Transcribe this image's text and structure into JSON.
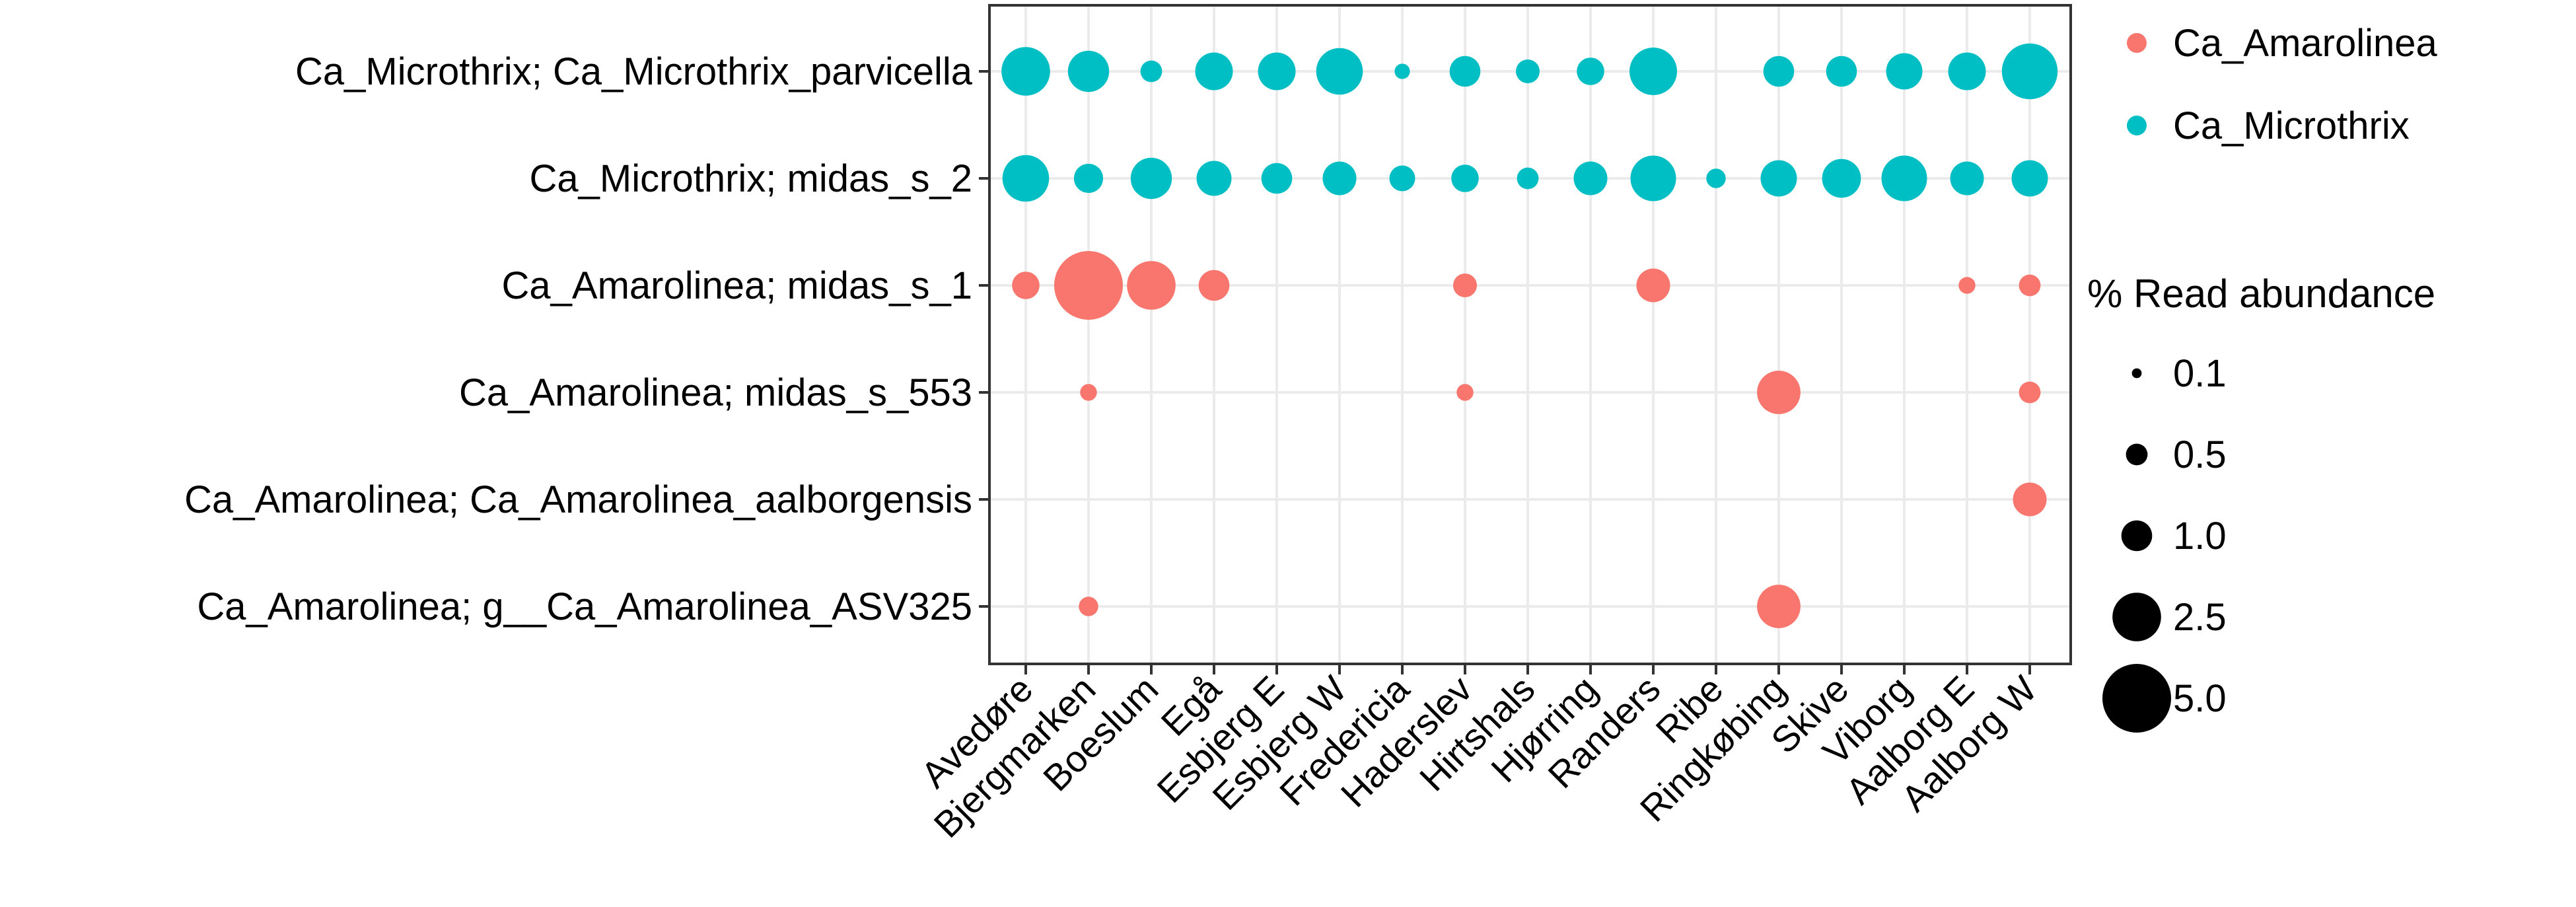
{
  "chart_data": {
    "type": "scatter",
    "subtype": "bubble",
    "title": "",
    "xlabel": "",
    "ylabel": "",
    "x_categories": [
      "Avedøre",
      "Bjergmarken",
      "Boeslum",
      "Egå",
      "Esbjerg E",
      "Esbjerg W",
      "Fredericia",
      "Haderslev",
      "Hirtshals",
      "Hjørring",
      "Randers",
      "Ribe",
      "Ringkøbing",
      "Skive",
      "Viborg",
      "Aalborg E",
      "Aalborg W"
    ],
    "y_categories": [
      "Ca_Microthrix; Ca_Microthrix_parvicella",
      "Ca_Microthrix; midas_s_2",
      "Ca_Amarolinea; midas_s_1",
      "Ca_Amarolinea; midas_s_553",
      "Ca_Amarolinea; Ca_Amarolinea_aalborgensis",
      "Ca_Amarolinea; g__Ca_Amarolinea_ASV325"
    ],
    "colors": {
      "Ca_Amarolinea": "#F8766D",
      "Ca_Microthrix": "#00BFC4"
    },
    "series": [
      {
        "name": "Ca_Microthrix",
        "row": "Ca_Microthrix; Ca_Microthrix_parvicella",
        "values": [
          2.5,
          1.8,
          0.5,
          1.5,
          1.5,
          2.3,
          0.25,
          1.0,
          0.6,
          0.8,
          2.4,
          null,
          1.0,
          1.0,
          1.4,
          1.5,
          3.3
        ]
      },
      {
        "name": "Ca_Microthrix",
        "row": "Ca_Microthrix; midas_s_2",
        "values": [
          2.3,
          0.9,
          1.8,
          1.3,
          1.0,
          1.2,
          0.7,
          0.8,
          0.5,
          1.2,
          2.2,
          0.4,
          1.4,
          1.6,
          2.2,
          1.2,
          1.4
        ]
      },
      {
        "name": "Ca_Amarolinea",
        "row": "Ca_Amarolinea; midas_s_1",
        "values": [
          0.8,
          5.0,
          2.5,
          1.0,
          null,
          null,
          null,
          0.6,
          null,
          null,
          1.2,
          null,
          null,
          null,
          null,
          0.3,
          0.5
        ]
      },
      {
        "name": "Ca_Amarolinea",
        "row": "Ca_Amarolinea; midas_s_553",
        "values": [
          null,
          0.3,
          null,
          null,
          null,
          null,
          null,
          0.3,
          null,
          null,
          null,
          null,
          2.0,
          null,
          null,
          null,
          0.5
        ]
      },
      {
        "name": "Ca_Amarolinea",
        "row": "Ca_Amarolinea; Ca_Amarolinea_aalborgensis",
        "values": [
          null,
          null,
          null,
          null,
          null,
          null,
          null,
          null,
          null,
          null,
          null,
          null,
          null,
          null,
          null,
          null,
          1.2
        ]
      },
      {
        "name": "Ca_Amarolinea",
        "row": "Ca_Amarolinea; g__Ca_Amarolinea_ASV325",
        "values": [
          null,
          0.4,
          null,
          null,
          null,
          null,
          null,
          null,
          null,
          null,
          null,
          null,
          2.0,
          null,
          null,
          null,
          null
        ]
      }
    ],
    "legend": {
      "color_entries": [
        "Ca_Amarolinea",
        "Ca_Microthrix"
      ],
      "size_title": "% Read abundance",
      "size_breaks": [
        0.1,
        0.5,
        1.0,
        2.5,
        5.0
      ],
      "size_labels": [
        "0.1",
        "0.5",
        "1.0",
        "2.5",
        "5.0"
      ],
      "placement": "right"
    },
    "grid": true
  }
}
